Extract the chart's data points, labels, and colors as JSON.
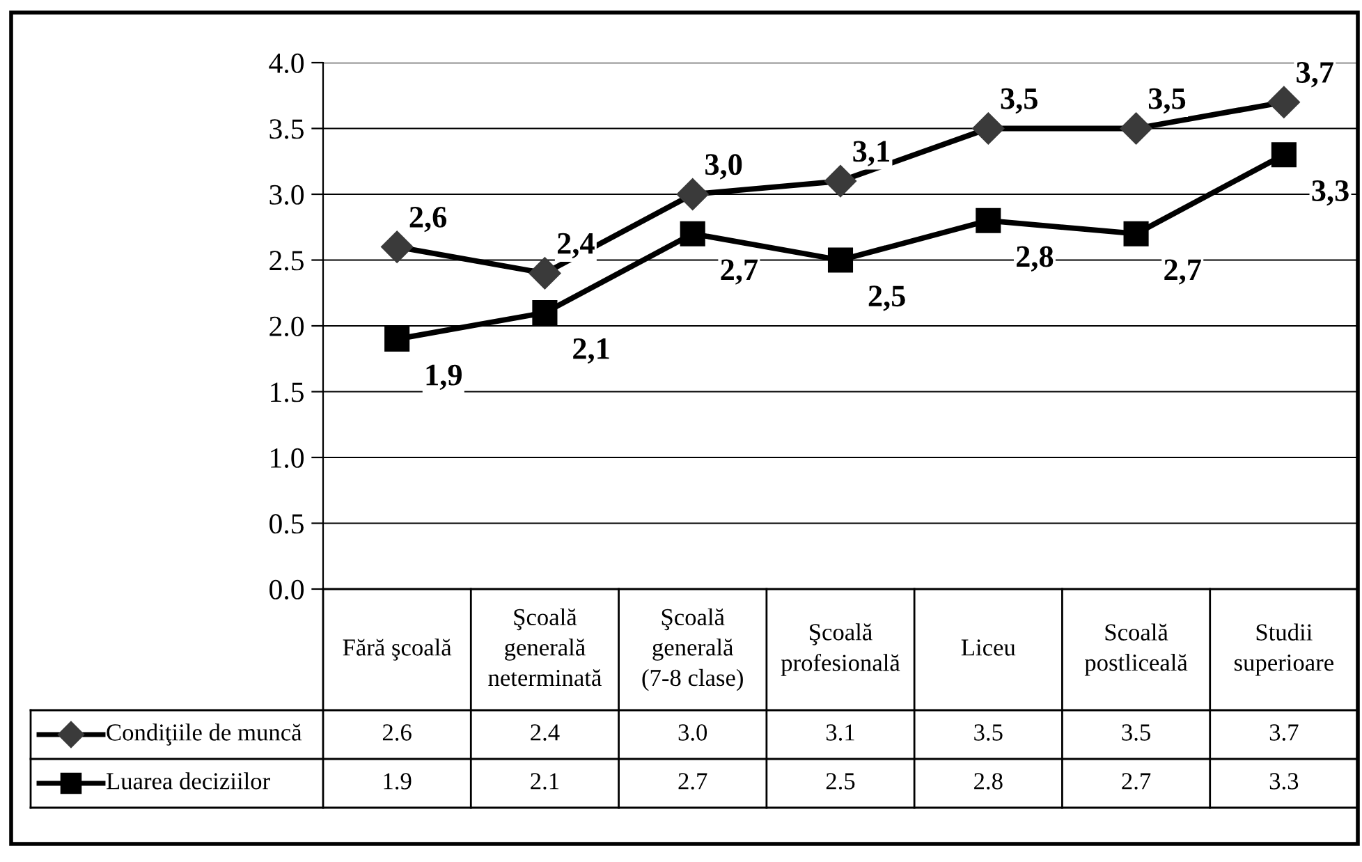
{
  "chart_data": {
    "type": "line",
    "categories": [
      "Fără şcoală",
      "Şcoală generală neterminată",
      "Şcoală generală (7-8 clase)",
      "Şcoală profesională",
      "Liceu",
      "Scoală postliceală",
      "Studii superioare"
    ],
    "series": [
      {
        "name": "Condiţiile de muncă",
        "color": "#3a3a3a",
        "marker": "diamond",
        "values": [
          2.6,
          2.4,
          3.0,
          3.1,
          3.5,
          3.5,
          3.7
        ],
        "value_labels": [
          "2,6",
          "2,4",
          "3,0",
          "3,1",
          "3,5",
          "3,5",
          "3,7"
        ]
      },
      {
        "name": "Luarea deciziilor",
        "color": "#000000",
        "marker": "square",
        "values": [
          1.9,
          2.1,
          2.7,
          2.5,
          2.8,
          2.7,
          3.3
        ],
        "value_labels": [
          "1,9",
          "2,1",
          "2,7",
          "2,5",
          "2,8",
          "2,7",
          "3,3"
        ]
      }
    ],
    "annotations": [
      "2.6",
      "2.4",
      "3.0",
      "3.1",
      "3.5",
      "3.5",
      "3.7",
      "1.9",
      "2.1",
      "2.7",
      "2.5",
      "2.8",
      "2.7",
      "3.3"
    ],
    "ylim": [
      0,
      4
    ],
    "yticks": [
      "0.0",
      "0.5",
      "1.0",
      "1.5",
      "2.0",
      "2.5",
      "3.0",
      "3.5",
      "4.0"
    ],
    "grid": "y",
    "legend": "bottom left",
    "line_style": "solid"
  }
}
